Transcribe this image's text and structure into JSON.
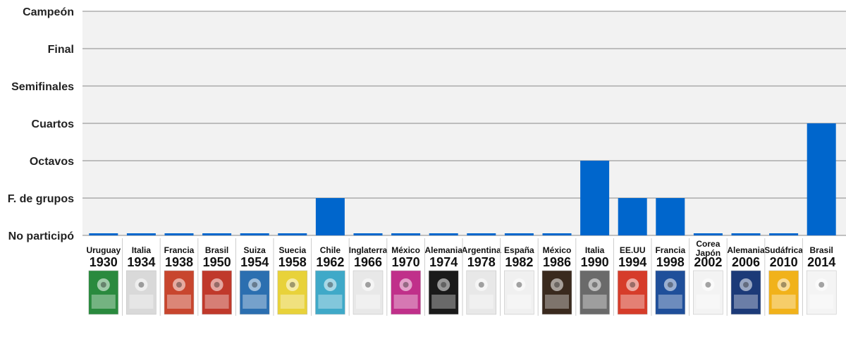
{
  "chart_data": {
    "type": "bar",
    "title": "",
    "xlabel": "",
    "ylabel": "",
    "y_levels": [
      "No participó",
      "F. de grupos",
      "Octavos",
      "Cuartos",
      "Semifinales",
      "Final",
      "Campeón"
    ],
    "ylim": [
      0,
      6
    ],
    "grid": true,
    "categories": [
      {
        "country": "Uruguay",
        "year": "1930"
      },
      {
        "country": "Italia",
        "year": "1934"
      },
      {
        "country": "Francia",
        "year": "1938"
      },
      {
        "country": "Brasil",
        "year": "1950"
      },
      {
        "country": "Suiza",
        "year": "1954"
      },
      {
        "country": "Suecia",
        "year": "1958"
      },
      {
        "country": "Chile",
        "year": "1962"
      },
      {
        "country": "Inglaterra",
        "year": "1966"
      },
      {
        "country": "México",
        "year": "1970"
      },
      {
        "country": "Alemania",
        "year": "1974"
      },
      {
        "country": "Argentina",
        "year": "1978"
      },
      {
        "country": "España",
        "year": "1982"
      },
      {
        "country": "México",
        "year": "1986"
      },
      {
        "country": "Italia",
        "year": "1990"
      },
      {
        "country": "EE.UU",
        "year": "1994"
      },
      {
        "country": "Francia",
        "year": "1998"
      },
      {
        "country": "Corea Japón",
        "year": "2002"
      },
      {
        "country": "Alemania",
        "year": "2006"
      },
      {
        "country": "Sudáfrica",
        "year": "2010"
      },
      {
        "country": "Brasil",
        "year": "2014"
      }
    ],
    "values": [
      0,
      0,
      0,
      0,
      0,
      0,
      1,
      0,
      0,
      0,
      0,
      0,
      0,
      2,
      1,
      1,
      0,
      0,
      0,
      3
    ],
    "bar_color": "#0066cc",
    "band_color": "#f2f2f2",
    "gridline_color": "#888888"
  },
  "posters": {
    "note_icons": "decorative tournament poster thumbnails",
    "colors": [
      "#2a8a3e",
      "#d9d9d9",
      "#c8462e",
      "#c0392b",
      "#2b6fb0",
      "#e8d23a",
      "#3fa9c8",
      "#e8e8e8",
      "#c0308a",
      "#1a1a1a",
      "#e8e8e8",
      "#f0f0f0",
      "#3a2a1e",
      "#6a6a6a",
      "#d63c2a",
      "#1f4f9a",
      "#f3f3f3",
      "#1c3a78",
      "#f1b21a",
      "#f4f4f4"
    ]
  }
}
